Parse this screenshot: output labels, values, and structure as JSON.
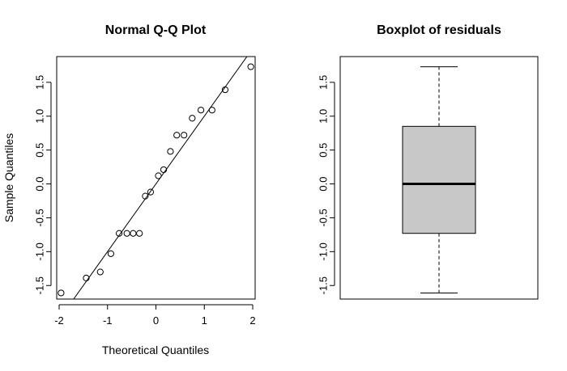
{
  "chart_data": [
    {
      "type": "scatter",
      "title": "Normal Q-Q Plot",
      "xlabel": "Theoretical Quantiles",
      "ylabel": "Sample Quantiles",
      "xlim": [
        -2.05,
        2.05
      ],
      "ylim": [
        -1.7,
        1.88
      ],
      "xticks": [
        "-2",
        "-1",
        "0",
        "1",
        "2"
      ],
      "xtick_values": [
        -2,
        -1,
        0,
        1,
        2
      ],
      "yticks": [
        "-1.5",
        "-1.0",
        "-0.5",
        "0.0",
        "0.5",
        "1.0",
        "1.5"
      ],
      "ytick_values": [
        -1.5,
        -1.0,
        -0.5,
        0.0,
        0.5,
        1.0,
        1.5
      ],
      "points": [
        {
          "x": -1.96,
          "y": -1.61
        },
        {
          "x": -1.44,
          "y": -1.39
        },
        {
          "x": -1.15,
          "y": -1.3
        },
        {
          "x": -0.93,
          "y": -1.03
        },
        {
          "x": -0.76,
          "y": -0.73
        },
        {
          "x": -0.6,
          "y": -0.73
        },
        {
          "x": -0.47,
          "y": -0.73
        },
        {
          "x": -0.34,
          "y": -0.73
        },
        {
          "x": -0.22,
          "y": -0.18
        },
        {
          "x": -0.11,
          "y": -0.12
        },
        {
          "x": 0.05,
          "y": 0.12
        },
        {
          "x": 0.16,
          "y": 0.21
        },
        {
          "x": 0.3,
          "y": 0.48
        },
        {
          "x": 0.43,
          "y": 0.72
        },
        {
          "x": 0.58,
          "y": 0.72
        },
        {
          "x": 0.75,
          "y": 0.97
        },
        {
          "x": 0.93,
          "y": 1.09
        },
        {
          "x": 1.16,
          "y": 1.09
        },
        {
          "x": 1.43,
          "y": 1.39
        },
        {
          "x": 1.96,
          "y": 1.73
        }
      ],
      "reference_line": {
        "slope": 1.0,
        "intercept": 0.0
      }
    },
    {
      "type": "box",
      "title": "Boxplot of residuals",
      "ylim": [
        -1.7,
        1.88
      ],
      "yticks": [
        "-1.5",
        "-1.0",
        "-0.5",
        "0.0",
        "0.5",
        "1.0",
        "1.5"
      ],
      "ytick_values": [
        -1.5,
        -1.0,
        -0.5,
        0.0,
        0.5,
        1.0,
        1.5
      ],
      "min": -1.61,
      "q1": -0.73,
      "median": 0.0,
      "q3": 0.85,
      "max": 1.73,
      "box_color": "#c8c8c8"
    }
  ]
}
